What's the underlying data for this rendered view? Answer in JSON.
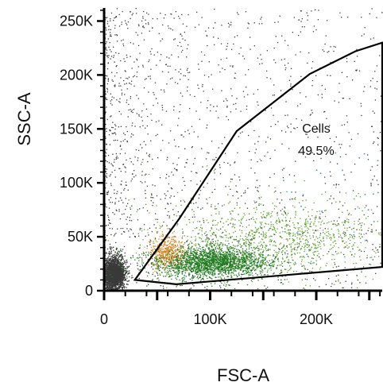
{
  "chart_data": {
    "type": "scatter",
    "xlabel": "FSC-A",
    "ylabel": "SSC-A",
    "xlim": [
      0,
      262144
    ],
    "ylim": [
      0,
      262144
    ],
    "x_tick_values": [
      0,
      100000,
      200000
    ],
    "x_tick_labels": [
      "0",
      "100K",
      "200K"
    ],
    "y_tick_values": [
      0,
      50000,
      100000,
      150000,
      200000,
      250000
    ],
    "y_tick_labels": [
      "0",
      "50K",
      "100K",
      "150K",
      "200K",
      "250K"
    ],
    "grid": false,
    "colors": {
      "ungated": "#3a3a3a",
      "low": "#1f7a1f",
      "mid": "#5aa02c",
      "orange": "#e8892b",
      "blue": "#4a90c8",
      "axis": "#000000"
    },
    "gate": {
      "name": "Cells",
      "percent": "49.5%",
      "vertices": [
        [
          29000,
          10000
        ],
        [
          68000,
          6000
        ],
        [
          262144,
          22000
        ],
        [
          262144,
          230000
        ],
        [
          237000,
          222000
        ],
        [
          194000,
          201000
        ],
        [
          125000,
          148000
        ],
        [
          71000,
          67000
        ]
      ]
    },
    "populations": [
      {
        "name": "debris",
        "color_key": "ungated",
        "cx": 9000,
        "cy": 14000,
        "sx": 5000,
        "sy": 9000,
        "n": 2600
      },
      {
        "name": "background",
        "color_key": "ungated",
        "cx": 0,
        "cy": 0,
        "uniform": true,
        "n": 1600
      },
      {
        "name": "main",
        "color_key": "low",
        "cx": 100000,
        "cy": 25000,
        "sx": 28000,
        "sy": 9000,
        "n": 2200
      },
      {
        "name": "spread",
        "color_key": "mid",
        "cx": 165000,
        "cy": 45000,
        "sx": 55000,
        "sy": 22000,
        "n": 1100
      },
      {
        "name": "orange",
        "color_key": "orange",
        "cx": 58000,
        "cy": 35000,
        "sx": 8000,
        "sy": 10000,
        "n": 380
      }
    ]
  }
}
